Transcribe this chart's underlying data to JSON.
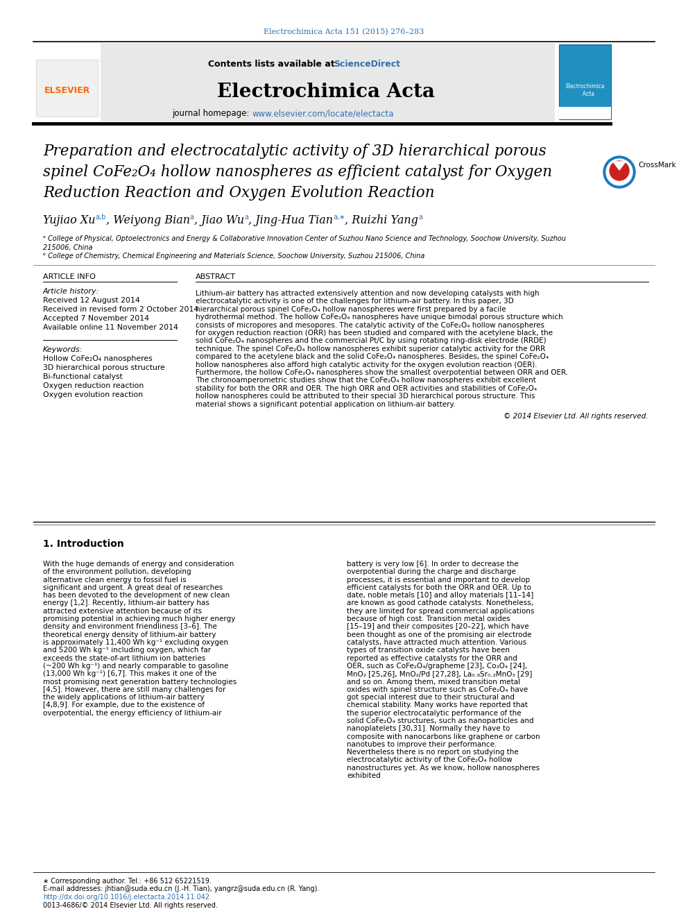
{
  "journal_ref": "Electrochimica Acta 151 (2015) 276–283",
  "journal_name": "Electrochimica Acta",
  "contents_pre": "Contents lists available at ",
  "sciencedirect": "ScienceDirect",
  "journal_homepage_pre": "journal homepage: ",
  "journal_url": "www.elsevier.com/locate/electacta",
  "title_line1": "Preparation and electrocatalytic activity of 3D hierarchical porous",
  "title_line2": "spinel CoFe₂O₄ hollow nanospheres as efficient catalyst for Oxygen",
  "title_line3": "Reduction Reaction and Oxygen Evolution Reaction",
  "affil_a": "ᵃ College of Physical, Optoelectronics and Energy & Collaborative Innovation Center of Suzhou Nano Science and Technology, Soochow University, Suzhou",
  "affil_a2": "215006, China",
  "affil_b": "ᵇ College of Chemistry, Chemical Engineering and Materials Science, Soochow University, Suzhou 215006, China",
  "art_info": "ARTICLE INFO",
  "abstract_hdr": "ABSTRACT",
  "art_hist": "Article history:",
  "received": "Received 12 August 2014",
  "revised": "Received in revised form 2 October 2014",
  "accepted": "Accepted 7 November 2014",
  "available": "Available online 11 November 2014",
  "kw_hdr": "Keywords:",
  "kw1": "Hollow CoFe₂O₄ nanospheres",
  "kw2": "3D hierarchical porous structure",
  "kw3": "Bi-functional catalyst",
  "kw4": "Oxygen reduction reaction",
  "kw5": "Oxygen evolution reaction",
  "abstract": "Lithium-air battery has attracted extensively attention and now developing catalysts with high electrocatalytic activity is one of the challenges for lithium-air battery. In this paper, 3D hierarchical porous spinel CoFe₂O₄ hollow nanospheres were first prepared by a facile hydrothermal method. The hollow CoFe₂O₄ nanospheres have unique bimodal porous structure which consists of micropores and mesopores. The catalytic activity of the CoFe₂O₄ hollow nanospheres for oxygen reduction reaction (ORR) has been studied and compared with the acetylene black, the solid CoFe₂O₄ nanospheres and the commercial Pt/C by using rotating ring-disk electrode (RRDE) technique. The spinel CoFe₂O₄ hollow nanospheres exhibit superior catalytic activity for the ORR compared to the acetylene black and the solid CoFe₂O₄ nanospheres. Besides, the spinel CoFe₂O₄ hollow nanospheres also afford high catalytic activity for the oxygen evolution reaction (OER). Furthermore, the hollow CoFe₂O₄ nanospheres show the smallest overpotential between ORR and OER. The chronoamperometric studies show that the CoFe₂O₄ hollow nanospheres exhibit excellent stability for both the ORR and OER. The high ORR and OER activities and stabilities of CoFe₂O₄ hollow nanospheres could be attributed to their special 3D hierarchical porous structure. This material shows a significant potential application on lithium-air battery.",
  "copyright": "© 2014 Elsevier Ltd. All rights reserved.",
  "intro_title": "1. Introduction",
  "intro_col1": "    With the huge demands of energy and consideration of the environment pollution, developing alternative clean energy to fossil fuel is significant and urgent. A great deal of researches has been devoted to the development of new clean energy [1,2]. Recently, lithium-air battery has attracted extensive attention because of its promising potential in achieving much higher energy density and environment friendliness [3–6]. The theoretical energy density of lithium-air battery is approximately 11,400 Wh kg⁻¹ excluding oxygen and 5200 Wh kg⁻¹ including oxygen, which far exceeds the state-of-art lithium ion batteries (~200 Wh kg⁻¹) and nearly comparable to gasoline (13,000 Wh kg⁻¹) [6,7]. This makes it one of the most promising next generation battery technologies [4,5]. However, there are still many challenges for the widely applications of lithium-air battery [4,8,9]. For example, due to the existence of overpotential, the energy efficiency of lithium-air",
  "intro_col2": "battery is very low [6]. In order to decrease the overpotential during the charge and discharge processes, it is essential and important to develop efficient catalysts for both the ORR and OER. Up to date, noble metals [10] and alloy materials [11–14] are known as good cathode catalysts. Nonetheless, they are limited for spread commercial applications because of high cost. Transition metal oxides [15–19] and their composites [20–22], which have been thought as one of the promising air electrode catalysts, have attracted much attention. Various types of transition oxide catalysts have been reported as effective catalysts for the ORR and OER, such as CoFe₂O₄/grapheme [23], Co₃O₄ [24], MnO₂ [25,26], MnO₂/Pd [27,28], La₀.₈Sr₀.₂MnO₃ [29] and so on. Among them, mixed transition metal oxides with spinel structure such as CoFe₂O₄ have got special interest due to their structural and chemical stability. Many works have reported that the superior electrocatalytic performance of the solid CoFe₂O₄ structures, such as nanoparticles and nanoplatelets [30,31]. Normally they have to composite with nanocarbons like graphene or carbon nanotubes to improve their performance. Nevertheless there is no report on studying the electrocatalytic activity of the CoFe₂O₄ hollow nanostructures yet. As we know, hollow nanospheres exhibited",
  "footer1": "∗ Corresponding author. Tel.: +86 512 65221519.",
  "footer2": "E-mail addresses: jhtian@suda.edu.cn (J.-H. Tian), yangrz@suda.edu.cn (R. Yang).",
  "footer_url": "http://dx.doi.org/10.1016/j.electacta.2014.11.042",
  "footer3": "0013-4686/© 2014 Elsevier Ltd. All rights reserved.",
  "link_color": "#3070B0",
  "orange": "#FF6600",
  "gray_bg": "#E8E8E8"
}
